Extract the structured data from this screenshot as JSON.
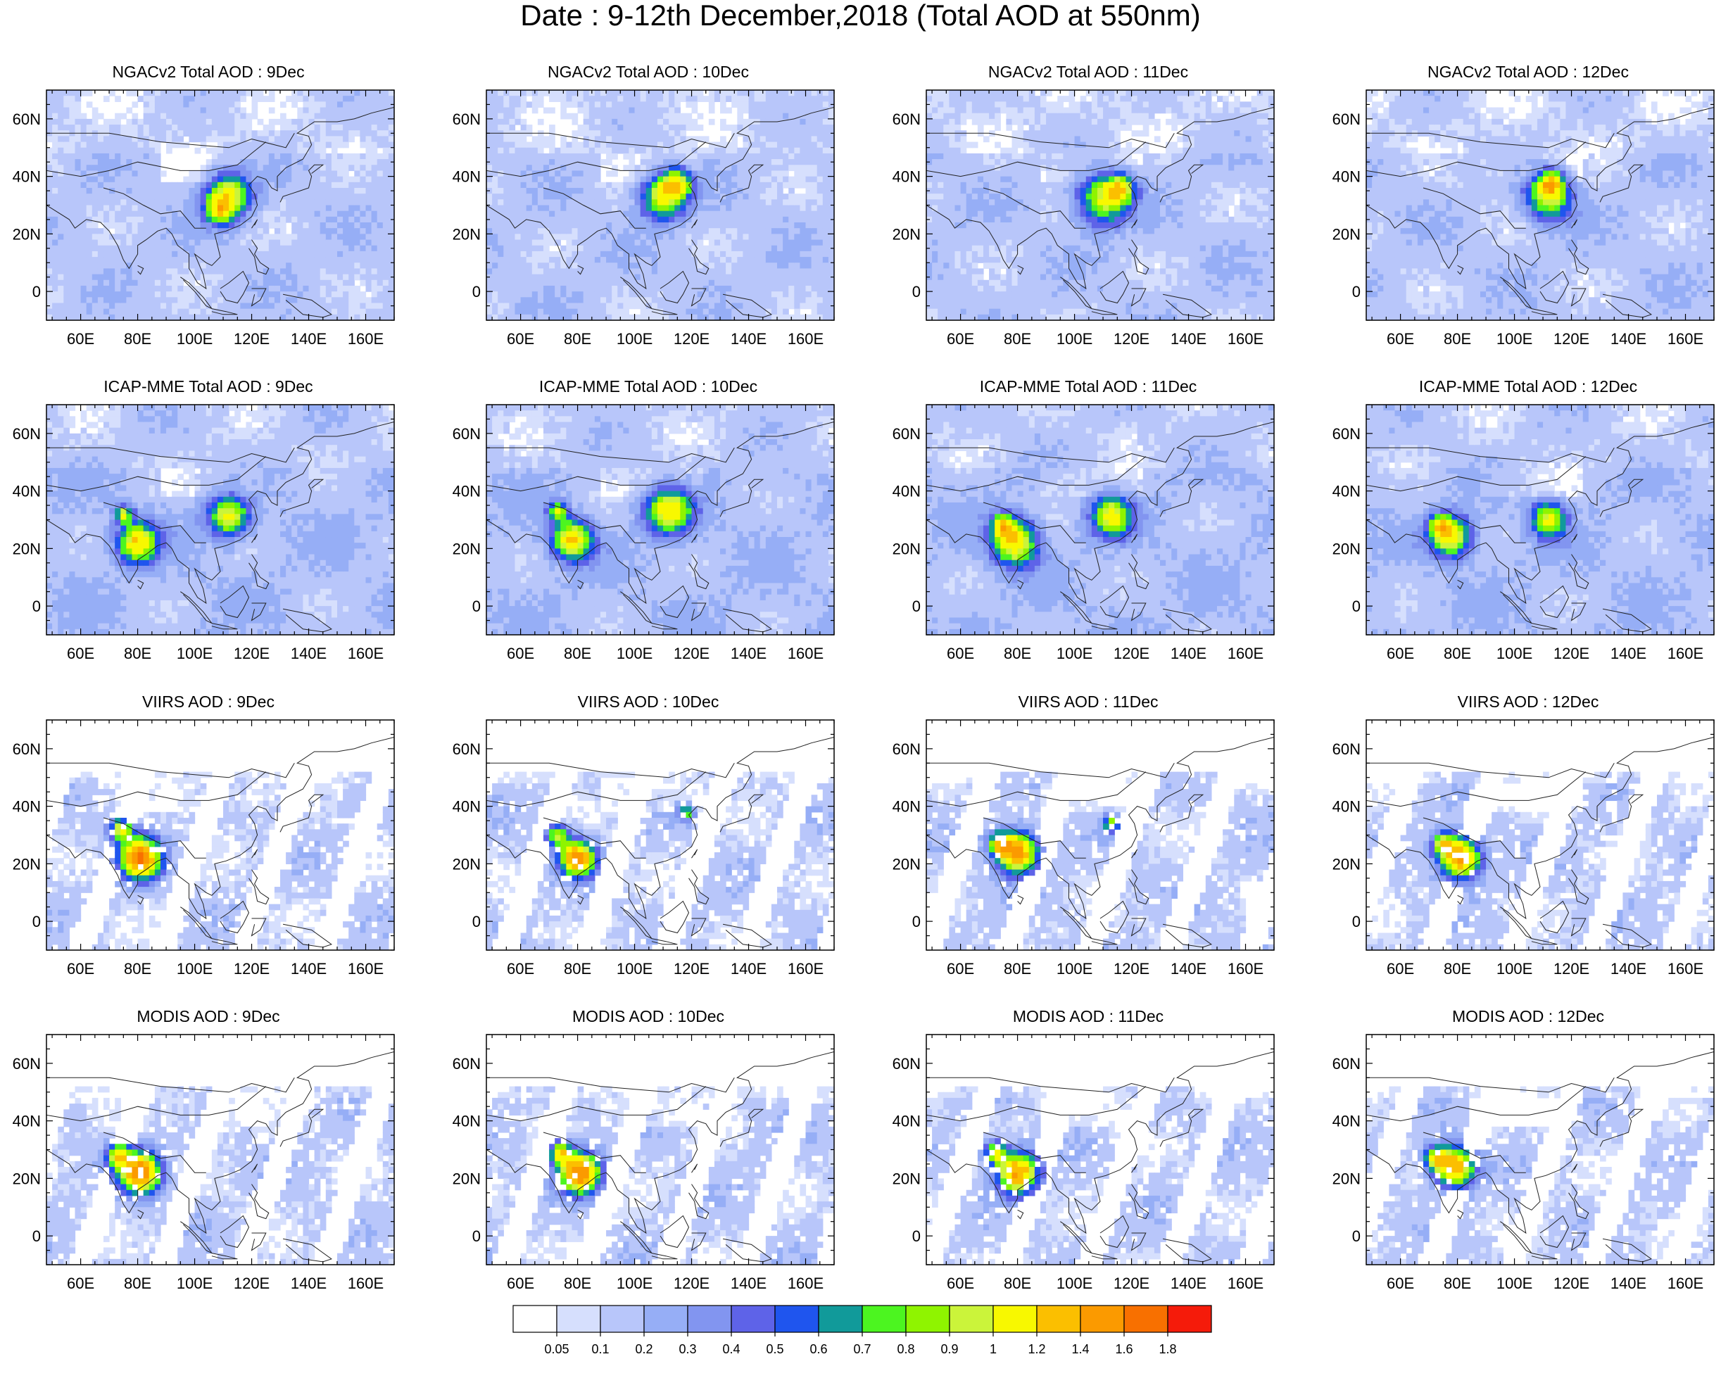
{
  "title": "Date : 9-12th December,2018 (Total AOD at 550nm)",
  "map": {
    "lon_ticks": [
      "60E",
      "80E",
      "100E",
      "120E",
      "140E",
      "160E"
    ],
    "lat_ticks": [
      "60N",
      "40N",
      "20N",
      "0"
    ],
    "lon_values": [
      60,
      80,
      100,
      120,
      140,
      160
    ],
    "lat_values": [
      60,
      40,
      20,
      0
    ],
    "lon_range": [
      48,
      170
    ],
    "lat_range": [
      -10,
      70
    ]
  },
  "rows": [
    {
      "source": "NGACv2 Total AOD",
      "kind": "model",
      "hotspots": [
        [
          112,
          35,
          7,
          0.9
        ],
        [
          108,
          30,
          6,
          0.75
        ]
      ],
      "background": 0.15
    },
    {
      "source": "ICAP-MME Total AOD",
      "kind": "model",
      "hotspots": [
        [
          80,
          22,
          7,
          1.0
        ],
        [
          112,
          30,
          7,
          0.9
        ],
        [
          75,
          32,
          3,
          0.8
        ]
      ],
      "background": 0.18
    },
    {
      "source": "VIIRS AOD",
      "kind": "obs",
      "hotspots": [
        [
          80,
          22,
          7,
          1.4
        ],
        [
          75,
          32,
          4,
          0.9
        ]
      ],
      "background": 0.12
    },
    {
      "source": "MODIS AOD",
      "kind": "obs",
      "hotspots": [
        [
          80,
          22,
          7,
          1.4
        ],
        [
          72,
          28,
          4,
          0.9
        ]
      ],
      "background": 0.12
    }
  ],
  "days": [
    "9Dec",
    "10Dec",
    "11Dec",
    "12Dec"
  ],
  "panels": [
    [
      "NGACv2 Total AOD : 9Dec",
      "NGACv2 Total AOD : 10Dec",
      "NGACv2 Total AOD : 11Dec",
      "NGACv2 Total AOD : 12Dec"
    ],
    [
      "ICAP-MME Total AOD : 9Dec",
      "ICAP-MME Total AOD : 10Dec",
      "ICAP-MME Total AOD : 11Dec",
      "ICAP-MME Total AOD : 12Dec"
    ],
    [
      "VIIRS AOD : 9Dec",
      "VIIRS AOD : 10Dec",
      "VIIRS AOD : 11Dec",
      "VIIRS AOD : 12Dec"
    ],
    [
      "MODIS AOD : 9Dec",
      "MODIS AOD : 10Dec",
      "MODIS AOD : 11Dec",
      "MODIS AOD : 12Dec"
    ]
  ],
  "colorbar": {
    "labels": [
      "0.05",
      "0.1",
      "0.2",
      "0.3",
      "0.4",
      "0.5",
      "0.6",
      "0.7",
      "0.8",
      "0.9",
      "1",
      "1.2",
      "1.4",
      "1.6",
      "1.8"
    ],
    "thresholds": [
      0.05,
      0.1,
      0.2,
      0.3,
      0.4,
      0.5,
      0.6,
      0.7,
      0.8,
      0.9,
      1,
      1.2,
      1.4,
      1.6,
      1.8
    ],
    "colors": [
      "#ffffff",
      "#d6dffd",
      "#b8c6fa",
      "#96aef6",
      "#8295f0",
      "#5e63e8",
      "#1f55ee",
      "#119a9a",
      "#4cf520",
      "#8ff400",
      "#cbf43a",
      "#f8f800",
      "#fbbf00",
      "#fb9a00",
      "#f87000",
      "#f51b0a"
    ]
  }
}
